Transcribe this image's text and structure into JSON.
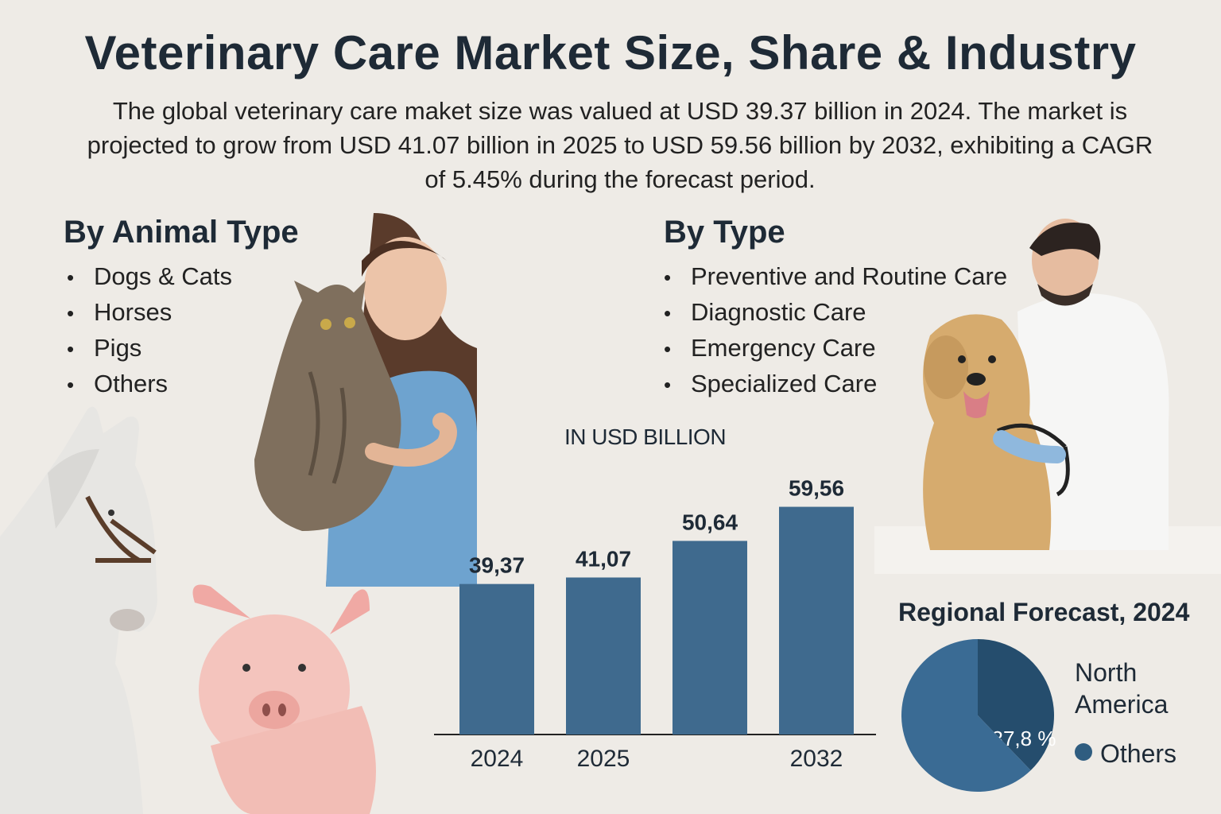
{
  "title": "Veterinary Care Market Size, Share & Industry",
  "subtitle": "The global veterinary care maket size was valued at USD 39.37 billion in 2024. The market is projected to grow from USD 41.07 billion in 2025 to USD 59.56 billion by 2032, exhibiting a CAGR of 5.45% during the forecast period.",
  "animal_type": {
    "heading": "By Animal Type",
    "items": [
      "Dogs & Cats",
      "Horses",
      "Pigs",
      "Others"
    ]
  },
  "care_type": {
    "heading": "By Type",
    "items": [
      "Preventive and Routine Care",
      "Diagnostic Care",
      "Emergency Care",
      "Specialized Care"
    ]
  },
  "colors": {
    "bar": "#3f6a8e",
    "pie_light": "#3a6b94",
    "pie_dark": "#254d6d",
    "text": "#1e2a36"
  },
  "chart_data": [
    {
      "type": "bar",
      "unit_label": "IN USD BILLION",
      "categories": [
        "2024",
        "2025",
        "",
        "2032"
      ],
      "values": [
        39.37,
        41.07,
        50.64,
        59.56
      ],
      "value_labels": [
        "39,37",
        "41,07",
        "50,64",
        "59,56"
      ],
      "ylim": [
        0,
        65
      ]
    },
    {
      "type": "pie",
      "title": "Regional Forecast, 2024",
      "slices": [
        {
          "label": "North America",
          "value": 37.8,
          "value_label": "37,8 %"
        },
        {
          "label": "Others",
          "value": 62.2
        }
      ]
    }
  ]
}
